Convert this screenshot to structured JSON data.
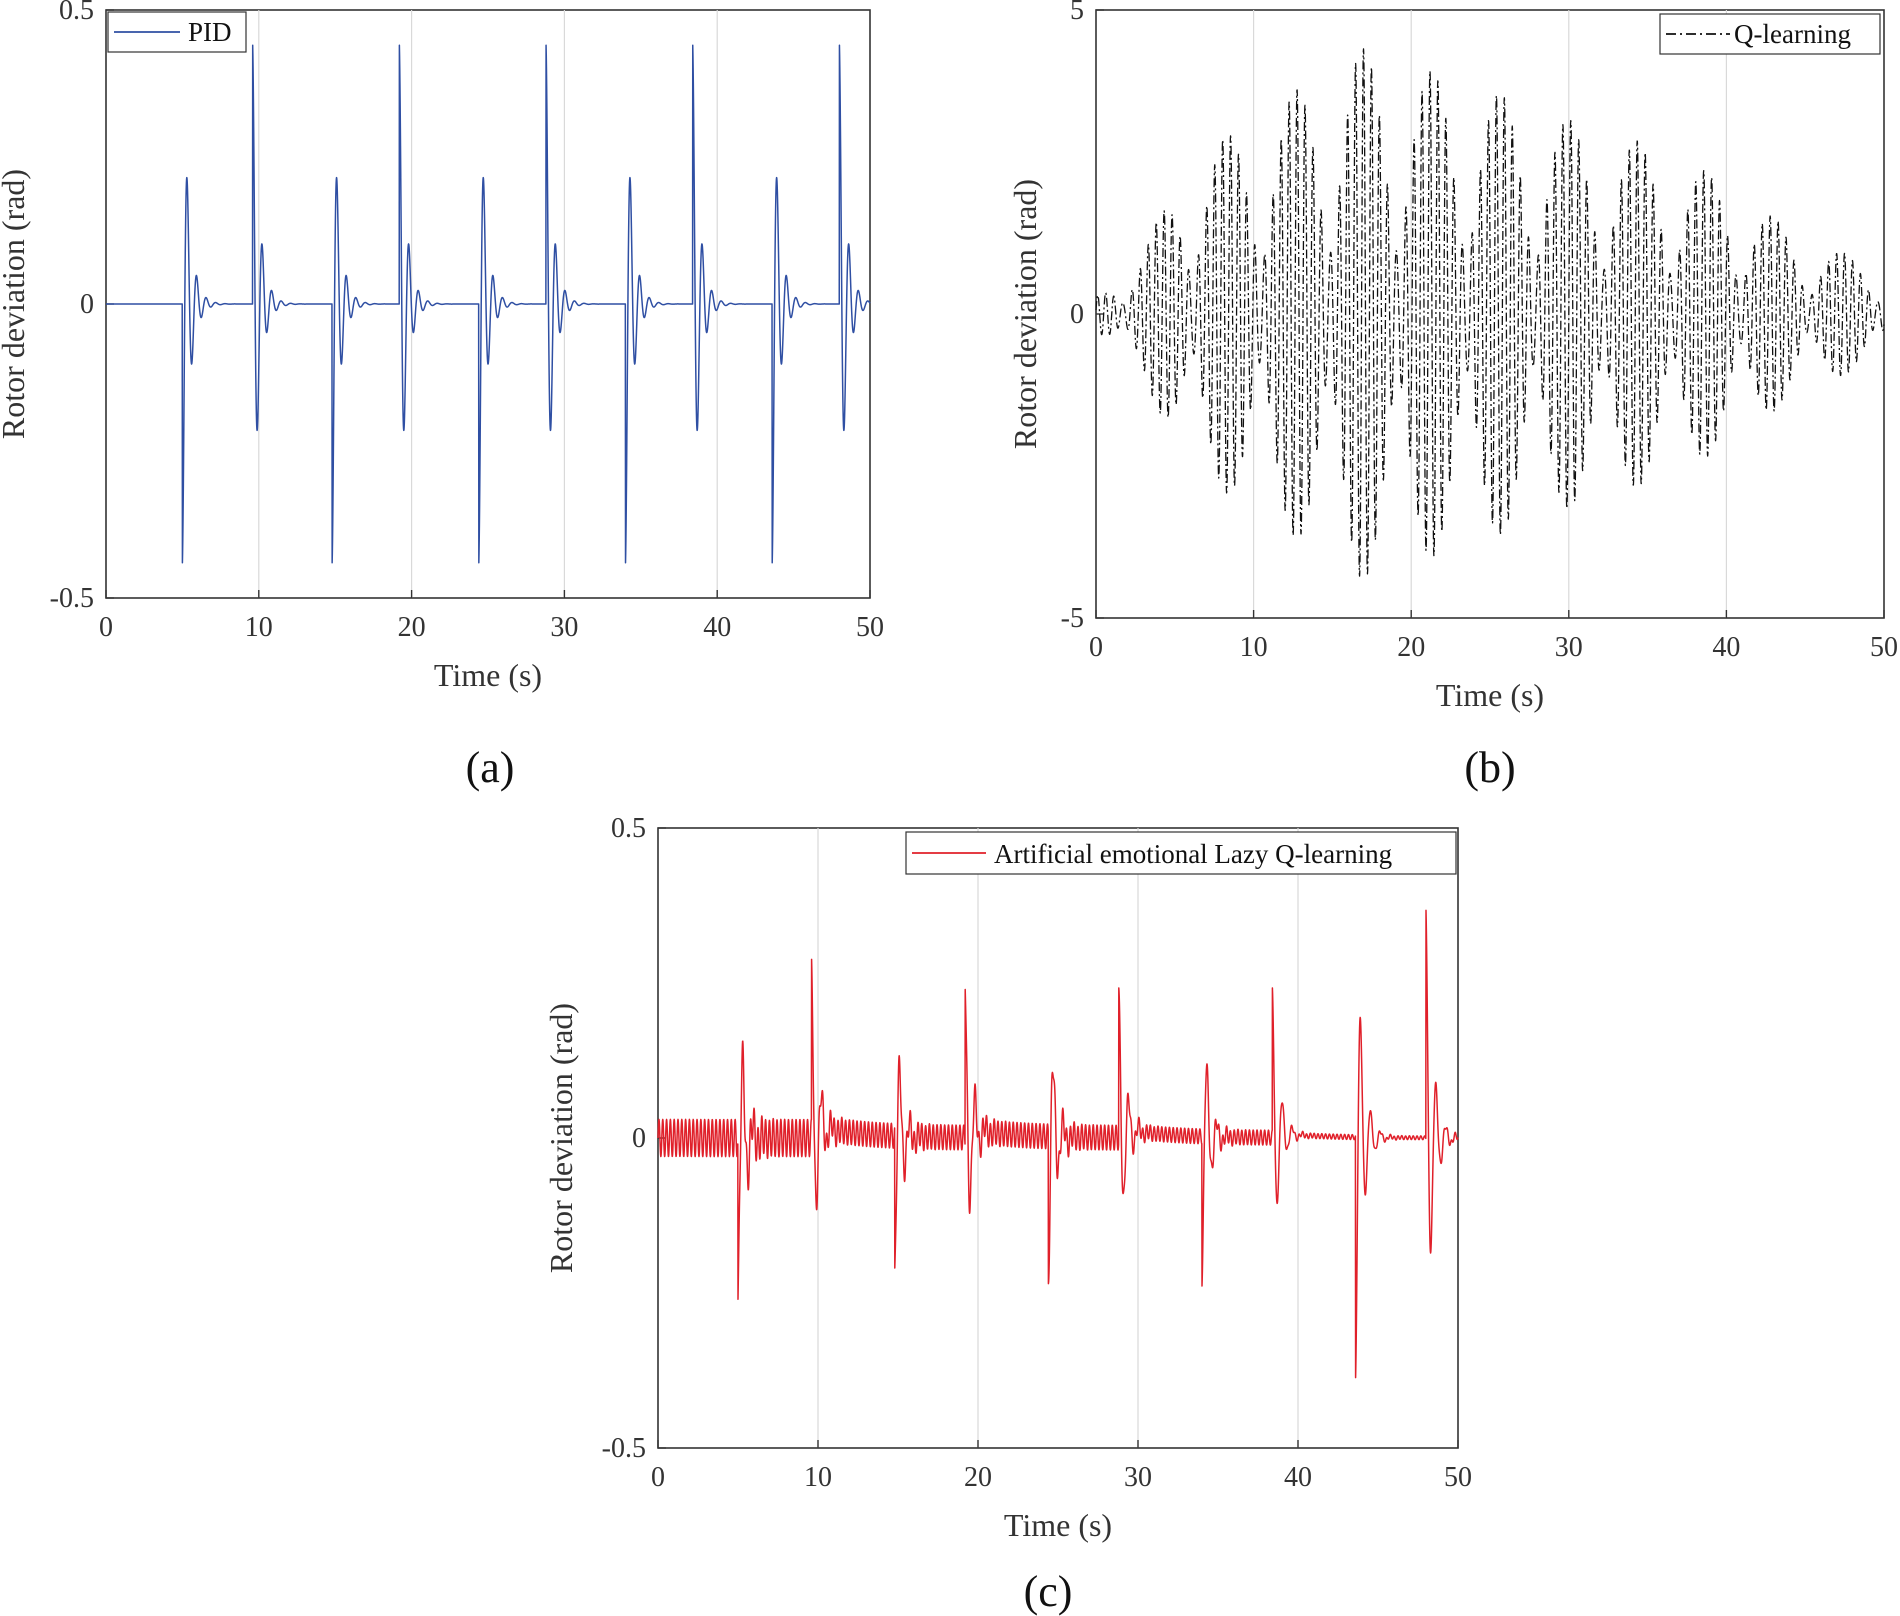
{
  "figure": {
    "captions": [
      "(a)",
      "(b)",
      "(c)"
    ]
  },
  "chart_data": [
    {
      "type": "line",
      "panel": "(a)",
      "xlabel": "Time (s)",
      "ylabel": "Rotor deviation (rad)",
      "xlim": [
        0,
        50
      ],
      "ylim": [
        -0.5,
        0.5
      ],
      "xticks": [
        0,
        10,
        20,
        30,
        40,
        50
      ],
      "yticks": [
        -0.5,
        0,
        0.5
      ],
      "ytick_labels": [
        "-0.5",
        "0",
        "0.5"
      ],
      "grid": "vertical",
      "legend": "top-left",
      "series": [
        {
          "name": "PID",
          "color": "#2f4fa3",
          "dash": "solid",
          "model": "periodic-spikes",
          "events": [
            {
              "t": 5.0,
              "amp": -0.44,
              "first": "down"
            },
            {
              "t": 9.6,
              "amp": 0.44,
              "first": "up"
            },
            {
              "t": 14.8,
              "amp": -0.44,
              "first": "down"
            },
            {
              "t": 19.2,
              "amp": 0.44,
              "first": "up"
            },
            {
              "t": 24.4,
              "amp": -0.44,
              "first": "down"
            },
            {
              "t": 28.8,
              "amp": 0.44,
              "first": "up"
            },
            {
              "t": 34.0,
              "amp": -0.44,
              "first": "down"
            },
            {
              "t": 38.4,
              "amp": 0.44,
              "first": "up"
            },
            {
              "t": 43.6,
              "amp": -0.44,
              "first": "down"
            },
            {
              "t": 48.0,
              "amp": 0.44,
              "first": "up"
            }
          ]
        }
      ]
    },
    {
      "type": "line",
      "panel": "(b)",
      "xlabel": "Time (s)",
      "ylabel": "Rotor deviation (rad)",
      "xlim": [
        0,
        50
      ],
      "ylim": [
        -5,
        5
      ],
      "xticks": [
        0,
        10,
        20,
        30,
        40,
        50
      ],
      "yticks": [
        -5,
        0,
        5
      ],
      "ytick_labels": [
        "-5",
        "0",
        "5"
      ],
      "grid": "vertical",
      "legend": "top-right",
      "series": [
        {
          "name": "Q-learning",
          "color": "#111111",
          "dash": "dashdot",
          "model": "growing-oscillation",
          "envelope": [
            {
              "t": 0,
              "a": 0.3
            },
            {
              "t": 3,
              "a": 1.1
            },
            {
              "t": 6,
              "a": 2.6
            },
            {
              "t": 10,
              "a": 3.2
            },
            {
              "t": 16.5,
              "a": 4.4
            },
            {
              "t": 25,
              "a": 3.7
            },
            {
              "t": 30,
              "a": 3.2
            },
            {
              "t": 35,
              "a": 2.8
            },
            {
              "t": 40,
              "a": 2.2
            },
            {
              "t": 45,
              "a": 1.2
            },
            {
              "t": 50,
              "a": 0.8
            }
          ]
        }
      ]
    },
    {
      "type": "line",
      "panel": "(c)",
      "xlabel": "Time (s)",
      "ylabel": "Rotor deviation (rad)",
      "xlim": [
        0,
        50
      ],
      "ylim": [
        -0.5,
        0.5
      ],
      "xticks": [
        0,
        10,
        20,
        30,
        40,
        50
      ],
      "yticks": [
        -0.5,
        0,
        0.5
      ],
      "ytick_labels": [
        "-0.5",
        "0",
        "0.5"
      ],
      "grid": "vertical",
      "legend": "top-right",
      "series": [
        {
          "name": "Artificial emotional Lazy Q-learning",
          "color": "#e0202a",
          "dash": "solid",
          "model": "spikes-with-ripple",
          "events": [
            {
              "t": 5.0,
              "amp": -0.26,
              "first": "down"
            },
            {
              "t": 9.6,
              "amp": 0.25,
              "first": "up"
            },
            {
              "t": 14.8,
              "amp": -0.23,
              "first": "down"
            },
            {
              "t": 19.2,
              "amp": 0.24,
              "first": "up"
            },
            {
              "t": 24.4,
              "amp": -0.24,
              "first": "down"
            },
            {
              "t": 28.8,
              "amp": 0.23,
              "first": "up"
            },
            {
              "t": 34.0,
              "amp": -0.23,
              "first": "down"
            },
            {
              "t": 38.4,
              "amp": 0.23,
              "first": "up"
            },
            {
              "t": 43.6,
              "amp": -0.39,
              "first": "down"
            },
            {
              "t": 48.0,
              "amp": 0.37,
              "first": "up"
            }
          ],
          "ripple": [
            {
              "t0": 0,
              "t1": 9.6,
              "amp": 0.03
            },
            {
              "t0": 9.6,
              "t1": 19.2,
              "amp": 0.02
            },
            {
              "t0": 19.2,
              "t1": 28.8,
              "amp": 0.02
            },
            {
              "t0": 28.8,
              "t1": 38.4,
              "amp": 0.012
            },
            {
              "t0": 38.4,
              "t1": 43.6,
              "amp": 0.004
            },
            {
              "t0": 43.6,
              "t1": 48.0,
              "amp": 0.003
            },
            {
              "t0": 48.0,
              "t1": 50.0,
              "amp": 0.005
            }
          ],
          "offset_segments": [
            {
              "t0": 9.6,
              "t1": 19.2,
              "v": 0.02
            },
            {
              "t0": 19.2,
              "t1": 28.8,
              "v": 0.015
            },
            {
              "t0": 28.8,
              "t1": 38.4,
              "v": 0.015
            },
            {
              "t0": 38.4,
              "t1": 48.0,
              "v": 0.008
            }
          ]
        }
      ]
    }
  ]
}
